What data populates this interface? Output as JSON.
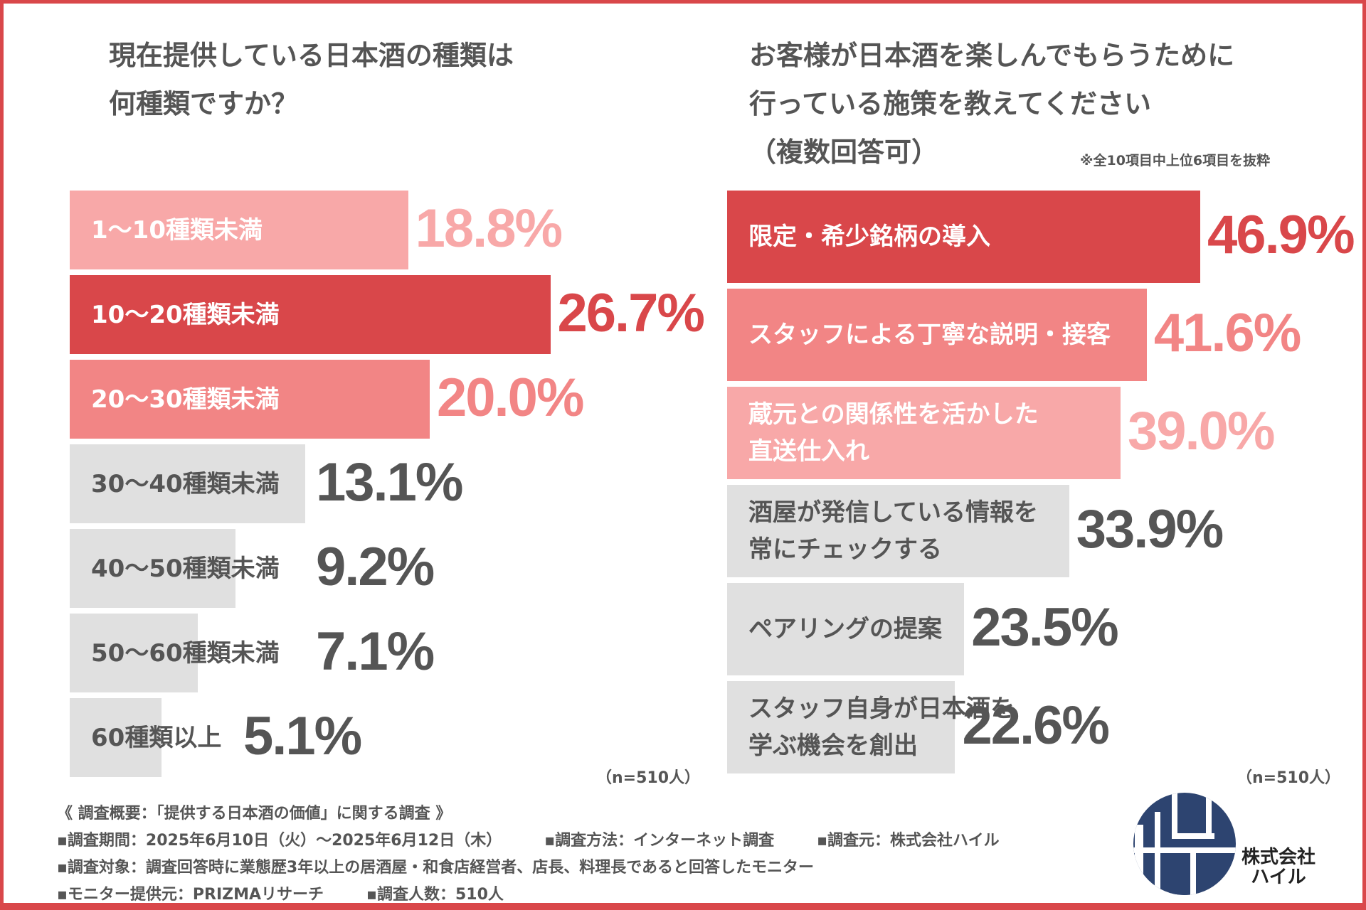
{
  "colors": {
    "frame": "#d9474a",
    "dark": "#d9474a",
    "mid": "#f28585",
    "light": "#f8a8a8",
    "gray": "#e0e0e0",
    "text_gray": "#555555",
    "logo": "#2d4470"
  },
  "chart_data": [
    {
      "type": "bar",
      "orientation": "horizontal",
      "title": "現在提供している日本酒の種類は\n何種類ですか？",
      "title_lines": [
        "現在提供している日本酒の種類は",
        "何種類ですか？"
      ],
      "categories": [
        "1〜10種類未満",
        "10〜20種類未満",
        "20〜30種類未満",
        "30〜40種類未満",
        "40〜50種類未満",
        "50〜60種類未満",
        "60種類以上"
      ],
      "values": [
        18.8,
        26.7,
        20.0,
        13.1,
        9.2,
        7.1,
        5.1
      ],
      "value_labels": [
        "18.8%",
        "26.7%",
        "20.0%",
        "13.1%",
        "9.2%",
        "7.1%",
        "5.1%"
      ],
      "bar_colors": [
        "light",
        "dark",
        "mid",
        "gray",
        "gray",
        "gray",
        "gray"
      ],
      "sample_note": "（n=510人）"
    },
    {
      "type": "bar",
      "orientation": "horizontal",
      "title_lines": [
        "お客様が日本酒を楽しんでもらうために",
        "行っている施策を教えてください",
        "（複数回答可）"
      ],
      "subnote": "※全10項目中上位6項目を抜粋",
      "categories": [
        [
          "限定・希少銘柄の導入"
        ],
        [
          "スタッフによる丁寧な説明・接客"
        ],
        [
          "蔵元との関係性を活かした",
          "直送仕入れ"
        ],
        [
          "酒屋が発信している情報を",
          "常にチェックする"
        ],
        [
          "ペアリングの提案"
        ],
        [
          "スタッフ自身が日本酒を",
          "学ぶ機会を創出"
        ]
      ],
      "values": [
        46.9,
        41.6,
        39.0,
        33.9,
        23.5,
        22.6
      ],
      "value_labels": [
        "46.9%",
        "41.6%",
        "39.0%",
        "33.9%",
        "23.5%",
        "22.6%"
      ],
      "bar_colors": [
        "dark",
        "mid",
        "light",
        "gray",
        "gray",
        "gray"
      ],
      "sample_note": "（n=510人）"
    }
  ],
  "footer": {
    "heading": "《 調査概要：「提供する日本酒の価値」に関する調査 》",
    "lines": [
      [
        "▪調査期間：2025年6月10日（火）〜2025年6月12日（木）",
        "▪調査方法：インターネット調査",
        "▪調査元：株式会社ハイル"
      ],
      [
        "▪調査対象：調査回答時に業態歴3年以上の居酒屋・和食店経営者、店長、料理長であると回答したモニター"
      ],
      [
        "▪モニター提供元：PRIZMAリサーチ",
        "▪調査人数：510人"
      ]
    ]
  },
  "logo": {
    "line1": "株式会社",
    "line2": "ハイル"
  }
}
